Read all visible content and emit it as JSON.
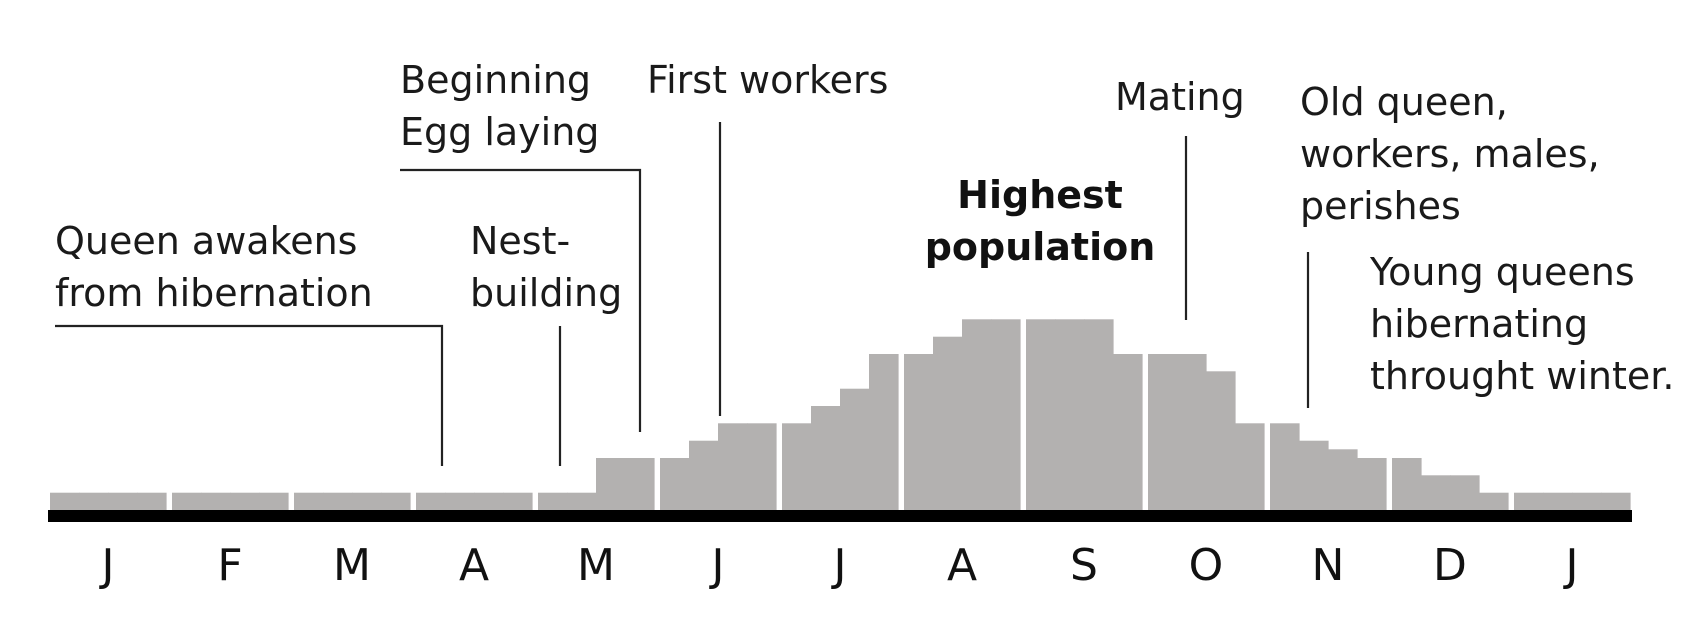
{
  "chart_data": {
    "type": "bar",
    "title": "",
    "xlabel": "",
    "ylabel": "",
    "grid": false,
    "months": [
      "J",
      "F",
      "M",
      "A",
      "M",
      "J",
      "J",
      "A",
      "S",
      "O",
      "N",
      "D",
      "J"
    ],
    "series": [
      {
        "values": [
          [
            1,
            1,
            1,
            1
          ],
          [
            1,
            1,
            1,
            1
          ],
          [
            1,
            1,
            1,
            1
          ],
          [
            1,
            1,
            1,
            1
          ],
          [
            1,
            1,
            3,
            3
          ],
          [
            3,
            4,
            5,
            5
          ],
          [
            5,
            6,
            7,
            9
          ],
          [
            9,
            10,
            11,
            11
          ],
          [
            11,
            11,
            11,
            9
          ],
          [
            9,
            9,
            8,
            5
          ],
          [
            5,
            4,
            3.5,
            3
          ],
          [
            3,
            2,
            2,
            1
          ],
          [
            1,
            1,
            1,
            1
          ]
        ]
      }
    ],
    "ylim": [
      0,
      12
    ],
    "annotations": [
      {
        "id": "queen-awakens",
        "lines": [
          "Queen awakens",
          "from hibernation"
        ],
        "bold": false
      },
      {
        "id": "nest-building",
        "lines": [
          "Nest-",
          "building"
        ],
        "bold": false
      },
      {
        "id": "egg-laying",
        "lines": [
          "Beginning",
          "Egg laying"
        ],
        "bold": false
      },
      {
        "id": "first-workers",
        "lines": [
          "First workers"
        ],
        "bold": false
      },
      {
        "id": "highest-population",
        "lines": [
          "Highest",
          "population"
        ],
        "bold": true
      },
      {
        "id": "mating",
        "lines": [
          "Mating"
        ],
        "bold": false
      },
      {
        "id": "old-queen",
        "lines": [
          "Old queen,",
          "workers, males,",
          "perishes"
        ],
        "bold": false
      },
      {
        "id": "young-queens",
        "lines": [
          "Young queens",
          "hibernating",
          "throught winter."
        ],
        "bold": false
      }
    ]
  }
}
